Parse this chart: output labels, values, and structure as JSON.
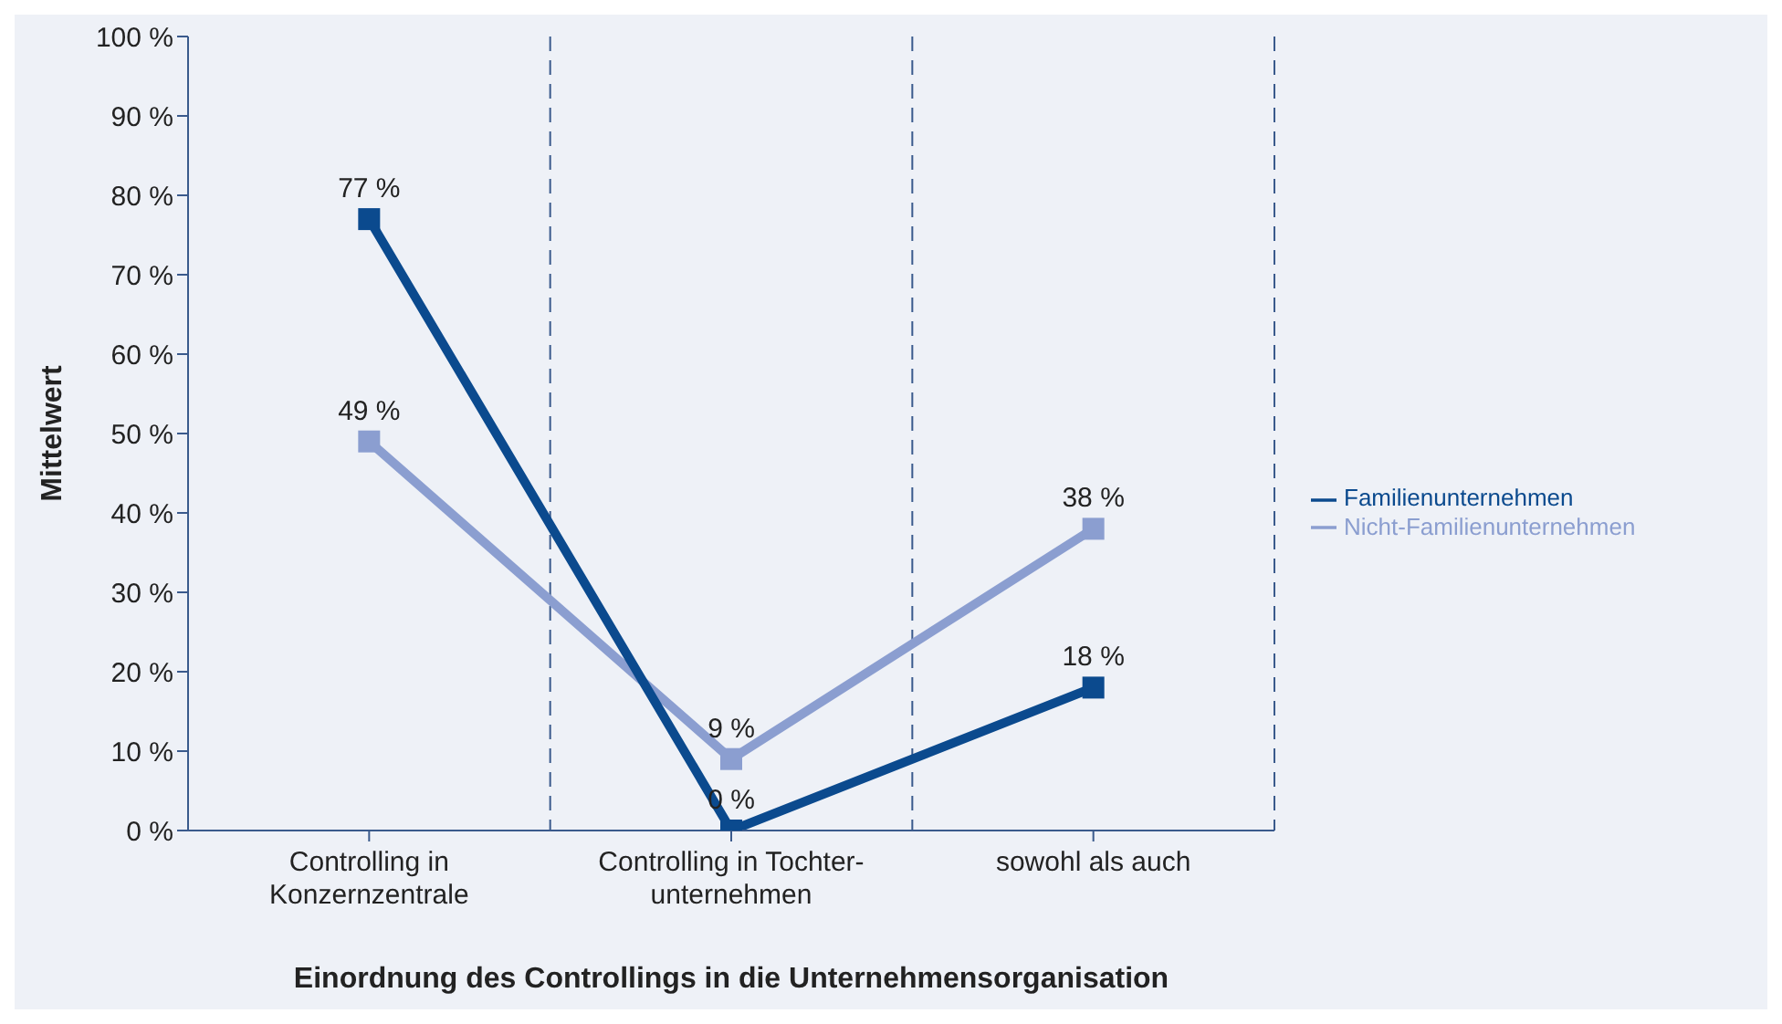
{
  "chart_data": {
    "type": "line",
    "xlabel": "Einordnung des Controllings in die Unternehmensorganisation",
    "ylabel": "Mittelwert",
    "categories": [
      "Controlling in\nKonzernzentrale",
      "Controlling in Tochter-\nunternehmen",
      "sowohl als auch"
    ],
    "series": [
      {
        "name": "Nicht-Familienunternehmen",
        "color": "#8b9ed0",
        "values": [
          49,
          9,
          38
        ],
        "value_labels": [
          "49 %",
          "9 %",
          "38 %"
        ]
      },
      {
        "name": "Familienunternehmen",
        "color": "#0b4a8e",
        "values": [
          77,
          0,
          18
        ],
        "value_labels": [
          "77 %",
          "0 %",
          "18 %"
        ]
      }
    ],
    "ylim": [
      0,
      100
    ],
    "yticks": [
      {
        "value": 0,
        "label": "0 %"
      },
      {
        "value": 10,
        "label": "10 %"
      },
      {
        "value": 20,
        "label": "20 %"
      },
      {
        "value": 30,
        "label": "30 %"
      },
      {
        "value": 40,
        "label": "40 %"
      },
      {
        "value": 50,
        "label": "50 %"
      },
      {
        "value": 60,
        "label": "60 %"
      },
      {
        "value": 70,
        "label": "70 %"
      },
      {
        "value": 80,
        "label": "80 %"
      },
      {
        "value": 90,
        "label": "90 %"
      },
      {
        "value": 100,
        "label": "100 %"
      }
    ],
    "grid": "x",
    "legend": "right",
    "marker": "square",
    "line_style": "solid"
  }
}
